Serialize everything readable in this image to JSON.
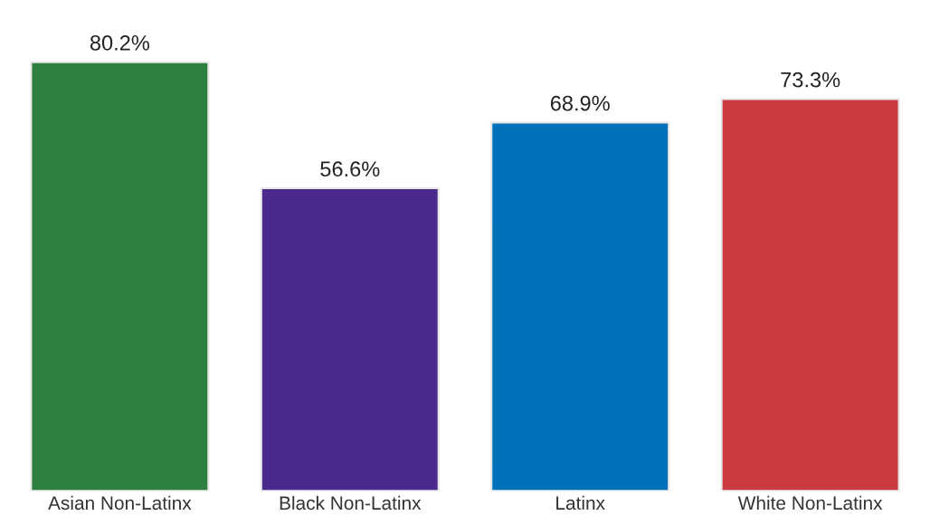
{
  "chart_data": {
    "type": "bar",
    "categories": [
      "Asian Non-Latinx",
      "Black Non-Latinx",
      "Latinx",
      "White Non-Latinx"
    ],
    "values": [
      80.2,
      56.6,
      68.9,
      73.3
    ],
    "value_labels": [
      "80.2%",
      "56.6%",
      "68.9%",
      "73.3%"
    ],
    "colors": [
      "#2e8040",
      "#4b2a8e",
      "#0071b9",
      "#cb3a40"
    ],
    "grid": false,
    "legend": false
  }
}
